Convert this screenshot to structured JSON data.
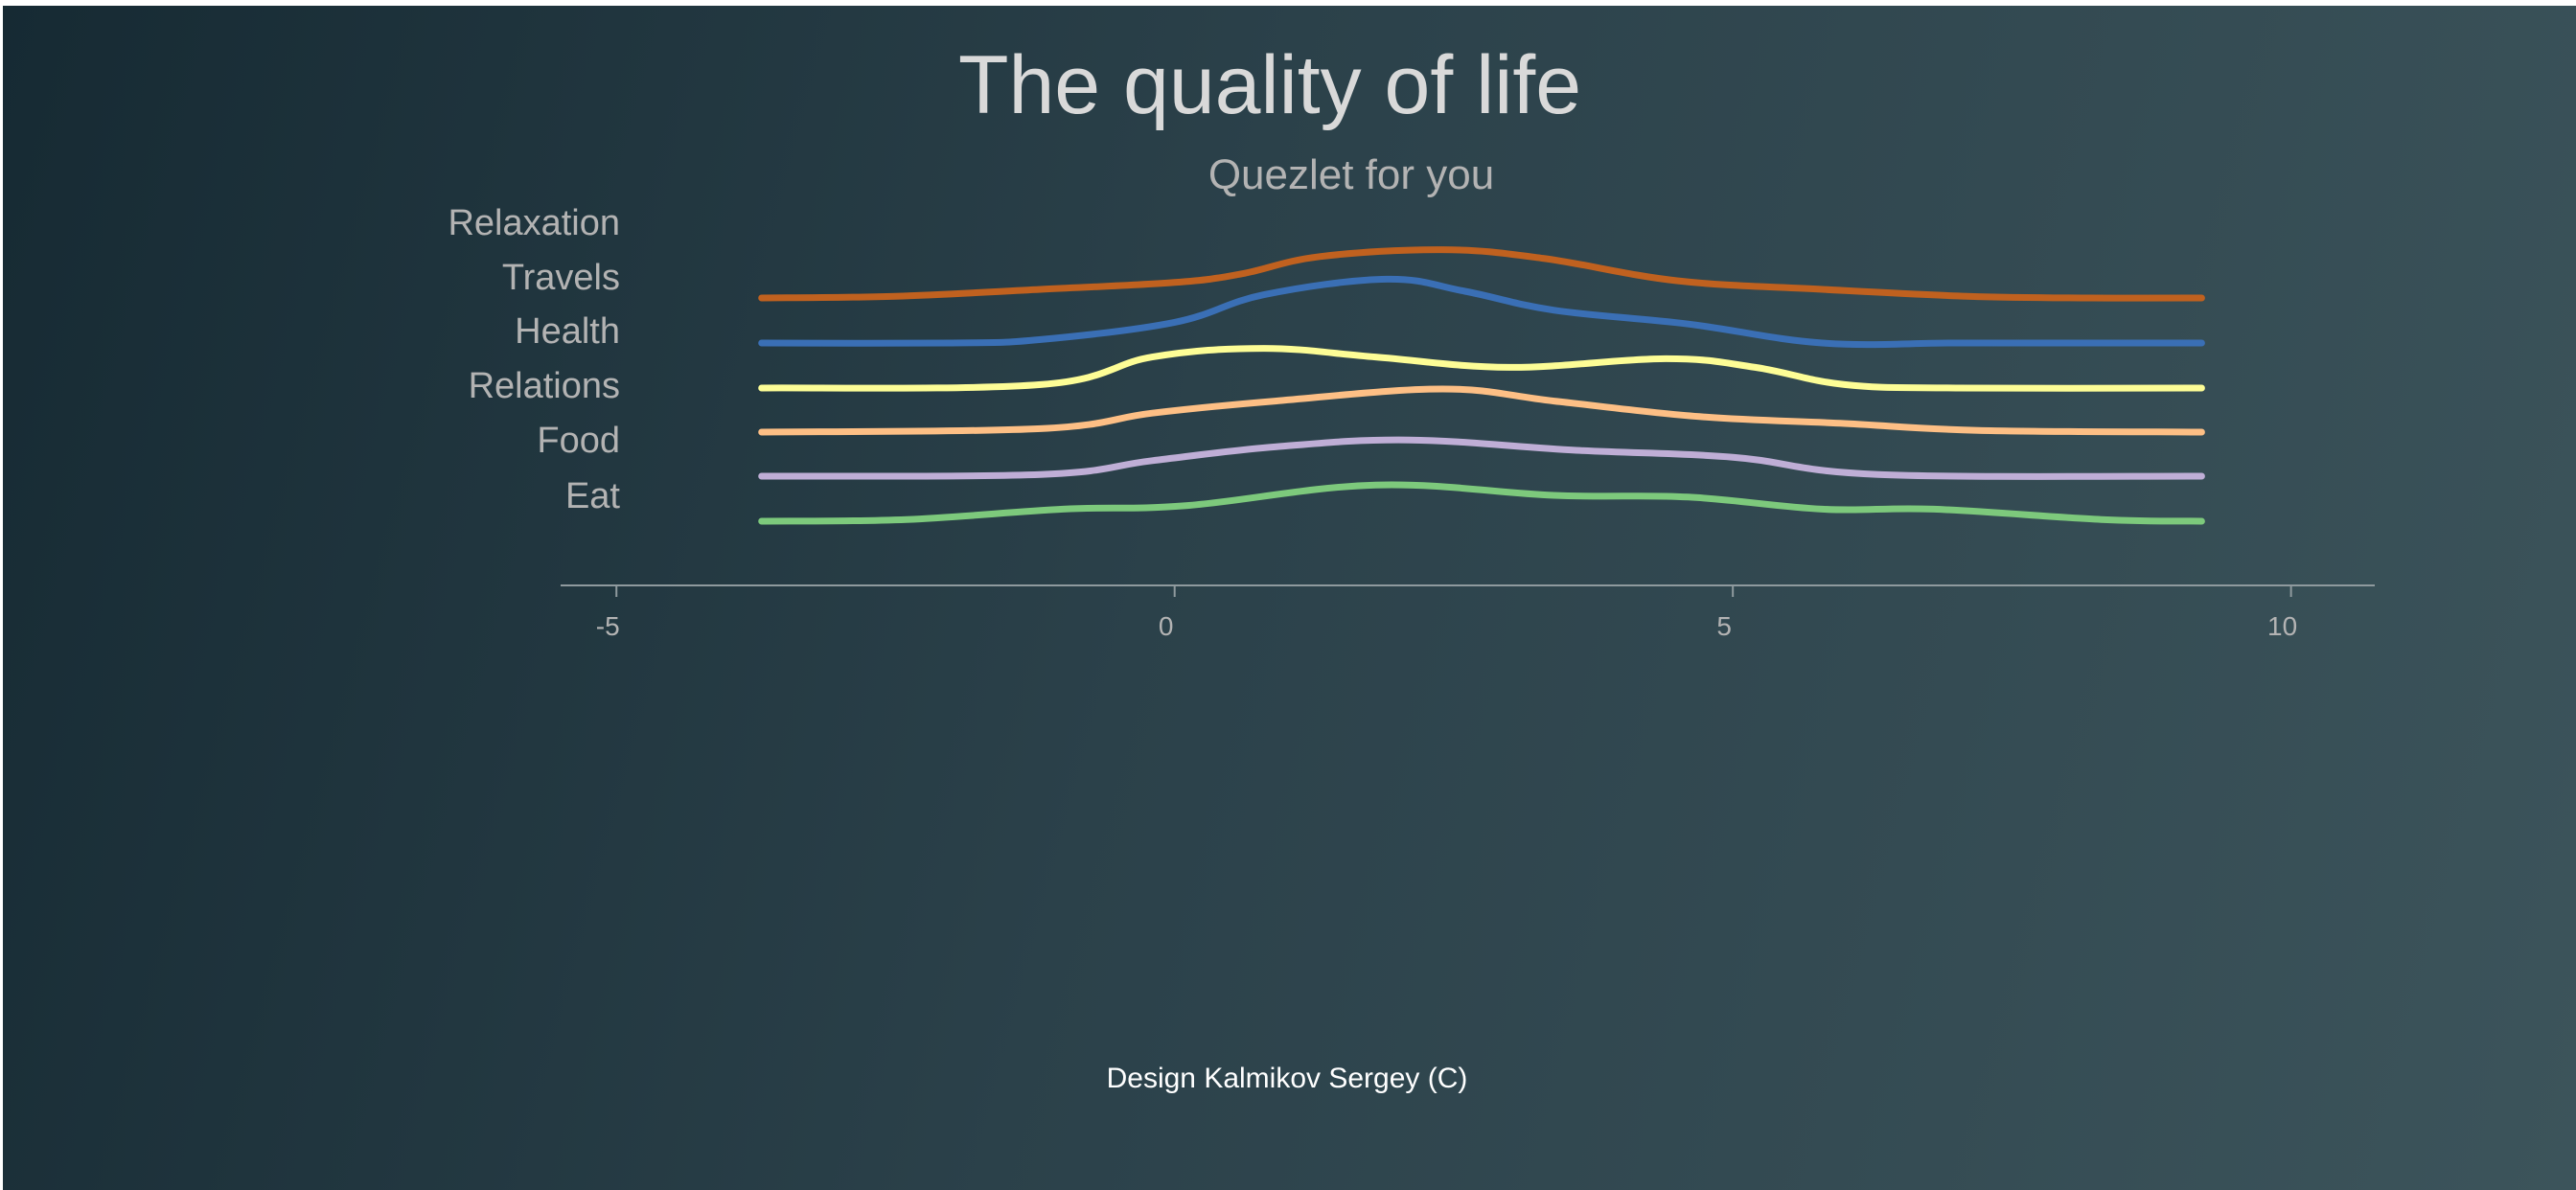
{
  "chart_data": {
    "type": "line",
    "title": "The quality of life",
    "subtitle": "Quezlet for you",
    "xlim": [
      -5.5,
      10.75
    ],
    "xticks": [
      -5,
      0,
      5,
      10
    ],
    "xtick_labels": [
      "-5",
      "0",
      "5",
      "10"
    ],
    "series": [
      {
        "name": "Relaxation",
        "color": "#c0611f",
        "x": [
          -3.7,
          -2.5,
          -1.2,
          0,
          0.6,
          1.3,
          2.4,
          3.3,
          4.5,
          5.8,
          7.1,
          8.2,
          9.2
        ],
        "values": [
          0.0,
          0.05,
          0.25,
          0.45,
          0.7,
          1.2,
          1.4,
          1.15,
          0.5,
          0.25,
          0.05,
          0.0,
          0.0
        ]
      },
      {
        "name": "Travels",
        "color": "#3a6fb5",
        "x": [
          -3.7,
          -2,
          -1.2,
          0,
          0.8,
          1.9,
          2.6,
          3.4,
          4.6,
          5.8,
          7,
          8.2,
          9.2
        ],
        "values": [
          0.0,
          0.0,
          0.1,
          0.6,
          1.4,
          1.85,
          1.5,
          0.95,
          0.55,
          0.0,
          0.0,
          0.0,
          0.0
        ]
      },
      {
        "name": "Health",
        "color": "#fdfd96",
        "x": [
          -3.7,
          -1.2,
          -0.2,
          0.8,
          1.8,
          3,
          4.4,
          5.2,
          6,
          7,
          9.2
        ],
        "values": [
          0.0,
          0.1,
          0.9,
          1.15,
          0.9,
          0.6,
          0.85,
          0.6,
          0.1,
          0.0,
          0.0
        ]
      },
      {
        "name": "Relations",
        "color": "#fdbf85",
        "x": [
          -3.7,
          -1.2,
          -0.2,
          0.9,
          2.4,
          3.4,
          4.7,
          6,
          7.2,
          9.2
        ],
        "values": [
          0.0,
          0.1,
          0.55,
          0.9,
          1.25,
          0.9,
          0.45,
          0.25,
          0.05,
          0.0
        ]
      },
      {
        "name": "Food",
        "color": "#bfaed6",
        "x": [
          -3.7,
          -1.2,
          -0.2,
          0.9,
          2.1,
          3.6,
          5,
          6.3,
          9.2
        ],
        "values": [
          0.0,
          0.05,
          0.45,
          0.85,
          1.05,
          0.75,
          0.55,
          0.05,
          0.0
        ]
      },
      {
        "name": "Eat",
        "color": "#7dc97c",
        "x": [
          -3.7,
          -2.4,
          -1,
          0.1,
          1.8,
          3.4,
          4.6,
          5.8,
          6.8,
          8.3,
          9.2
        ],
        "values": [
          0.0,
          0.05,
          0.35,
          0.45,
          1.05,
          0.75,
          0.7,
          0.35,
          0.35,
          0.05,
          0.0
        ]
      }
    ]
  },
  "footer": {
    "credit": "Design Kalmikov Sergey (C)"
  }
}
